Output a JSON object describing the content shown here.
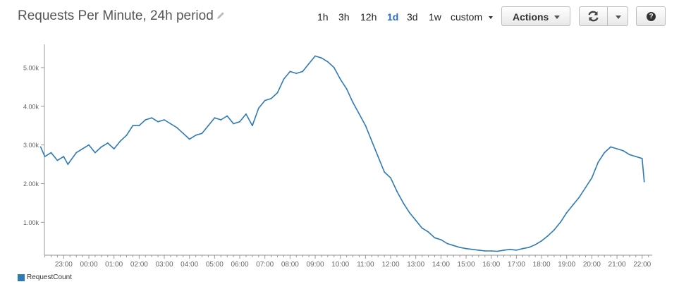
{
  "header": {
    "title": "Requests Per Minute, 24h period",
    "edit_icon": "pencil-icon"
  },
  "time_ranges": {
    "items": [
      "1h",
      "3h",
      "12h",
      "1d",
      "3d",
      "1w"
    ],
    "active": "1d",
    "custom_label": "custom"
  },
  "toolbar": {
    "actions_label": "Actions",
    "refresh_icon": "refresh-icon",
    "refresh_menu_icon": "chevron-down-icon",
    "help_icon": "help-icon",
    "help_glyph": "?"
  },
  "legend": {
    "label": "RequestCount",
    "color": "#2e7ab6"
  },
  "chart_data": {
    "type": "line",
    "title": "",
    "xlabel": "",
    "ylabel": "",
    "ylim": [
      150,
      5600
    ],
    "y_ticks": [
      1000,
      2000,
      3000,
      4000,
      5000
    ],
    "y_tick_labels": [
      "1.00k",
      "2.00k",
      "3.00k",
      "4.00k",
      "5.00k"
    ],
    "x_tick_labels": [
      "23:00",
      "00:00",
      "01:00",
      "02:00",
      "03:00",
      "04:00",
      "05:00",
      "06:00",
      "07:00",
      "08:00",
      "09:00",
      "10:00",
      "11:00",
      "12:00",
      "13:00",
      "14:00",
      "15:00",
      "16:00",
      "17:00",
      "18:00",
      "19:00",
      "20:00",
      "21:00",
      "22:00"
    ],
    "grid": false,
    "legend_position": "bottom-left",
    "series": [
      {
        "name": "RequestCount",
        "color": "#2e7ab6",
        "x": [
          "22:05",
          "22:15",
          "22:30",
          "22:45",
          "23:00",
          "23:10",
          "23:30",
          "23:45",
          "00:00",
          "00:15",
          "00:30",
          "00:45",
          "01:00",
          "01:15",
          "01:30",
          "01:45",
          "02:00",
          "02:15",
          "02:30",
          "02:45",
          "03:00",
          "03:15",
          "03:30",
          "03:45",
          "04:00",
          "04:15",
          "04:30",
          "04:45",
          "05:00",
          "05:15",
          "05:30",
          "05:45",
          "06:00",
          "06:15",
          "06:30",
          "06:45",
          "07:00",
          "07:15",
          "07:30",
          "07:45",
          "08:00",
          "08:15",
          "08:30",
          "08:45",
          "09:00",
          "09:15",
          "09:30",
          "09:45",
          "10:00",
          "10:15",
          "10:30",
          "10:45",
          "11:00",
          "11:15",
          "11:30",
          "11:45",
          "12:00",
          "12:15",
          "12:30",
          "12:45",
          "13:00",
          "13:15",
          "13:30",
          "13:45",
          "14:00",
          "14:15",
          "14:30",
          "14:45",
          "15:00",
          "15:15",
          "15:30",
          "15:45",
          "16:00",
          "16:15",
          "16:30",
          "16:45",
          "17:00",
          "17:15",
          "17:30",
          "17:45",
          "18:00",
          "18:15",
          "18:30",
          "18:45",
          "19:00",
          "19:15",
          "19:30",
          "19:45",
          "20:00",
          "20:15",
          "20:30",
          "20:45",
          "21:00",
          "21:15",
          "21:30",
          "21:45",
          "22:00",
          "22:05"
        ],
        "values": [
          2950,
          2700,
          2800,
          2600,
          2700,
          2500,
          2800,
          2900,
          3000,
          2800,
          2950,
          3050,
          2900,
          3100,
          3250,
          3500,
          3500,
          3650,
          3700,
          3600,
          3650,
          3550,
          3450,
          3300,
          3150,
          3250,
          3300,
          3500,
          3700,
          3650,
          3750,
          3550,
          3600,
          3800,
          3500,
          3950,
          4150,
          4200,
          4350,
          4700,
          4900,
          4850,
          4900,
          5100,
          5300,
          5250,
          5150,
          5000,
          4700,
          4450,
          4100,
          3800,
          3500,
          3100,
          2700,
          2300,
          2150,
          1800,
          1500,
          1250,
          1050,
          850,
          750,
          600,
          550,
          450,
          400,
          350,
          320,
          300,
          280,
          260,
          260,
          250,
          280,
          300,
          280,
          320,
          350,
          420,
          520,
          650,
          800,
          1000,
          1250,
          1450,
          1650,
          1900,
          2150,
          2550,
          2800,
          2950,
          2900,
          2850,
          2750,
          2700,
          2650,
          2050
        ]
      }
    ]
  }
}
